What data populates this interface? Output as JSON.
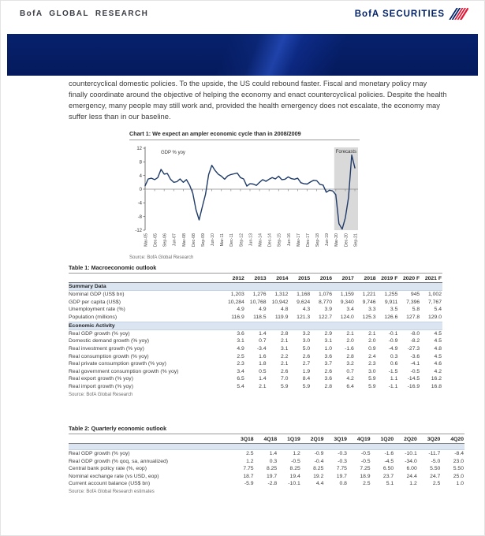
{
  "header": {
    "left_brand": "BofA GLOBAL RESEARCH",
    "right_brand": "BofA SECURITIES"
  },
  "paragraph": "countercyclical domestic policies. To the upside, the US could rebound faster. Fiscal and monetary policy may finally coordinate around the objective of helping the economy and enact countercyclical policies. Despite the health emergency, many people may still work and, provided the health emergency does not escalate, the economy may suffer less than in our baseline.",
  "chart": {
    "title": "Chart 1: We expect an ampler economic cycle than in 2008/2009",
    "source": "Source: BofA Global Research"
  },
  "chart_data": {
    "type": "line",
    "title": "We expect an ampler economic cycle than in 2008/2009",
    "series_label": "GDP % yoy",
    "forecast_label": "Forecasts",
    "ylim": [
      -12,
      12
    ],
    "yticks": [
      12,
      8,
      4,
      0,
      -4,
      -8,
      -12
    ],
    "x_tick_every": 3,
    "x_tick_labels": [
      "Mar-05",
      "Dec-05",
      "Sep-06",
      "Jun-07",
      "Mar-08",
      "Dec-08",
      "Sep-09",
      "Jun-10",
      "Mar-11",
      "Dec-11",
      "Sep-12",
      "Jun-13",
      "Mar-14",
      "Dec-14",
      "Sep-15",
      "Jun-16",
      "Mar-17",
      "Dec-17",
      "Sep-18",
      "Jun-19",
      "Mar-20",
      "Dec-20",
      "Sep-21"
    ],
    "values": [
      1.0,
      3.0,
      3.2,
      2.8,
      3.4,
      5.8,
      4.4,
      4.6,
      2.9,
      2.0,
      2.2,
      3.0,
      2.0,
      2.8,
      1.2,
      -1.2,
      -6.0,
      -9.0,
      -5.2,
      -1.5,
      4.3,
      7.0,
      5.5,
      4.4,
      3.8,
      2.9,
      3.9,
      4.3,
      4.5,
      4.7,
      3.4,
      3.0,
      0.9,
      1.6,
      1.5,
      1.1,
      2.0,
      2.8,
      2.3,
      2.9,
      3.4,
      3.0,
      3.8,
      2.8,
      2.9,
      3.6,
      3.1,
      2.9,
      3.2,
      1.9,
      1.6,
      1.5,
      2.1,
      2.6,
      2.5,
      1.4,
      1.2,
      -0.9,
      -0.3,
      -0.5,
      -1.6,
      -10.1,
      -11.7,
      -8.4,
      -2.5,
      10.0,
      6.2
    ],
    "forecast_start_index": 60,
    "legend_position": "none",
    "grid": false
  },
  "table1": {
    "title": "Table 1: Macroeconomic outlook",
    "columns": [
      "2012",
      "2013",
      "2014",
      "2015",
      "2016",
      "2017",
      "2018",
      "2019 F",
      "2020 F",
      "2021 F"
    ],
    "sections": [
      {
        "name": "Summary Data",
        "rows": [
          {
            "label": "Nominal GDP (US$ bn)",
            "values": [
              "1,203",
              "1,276",
              "1,312",
              "1,168",
              "1,076",
              "1,159",
              "1,221",
              "1,255",
              "945",
              "1,002"
            ]
          },
          {
            "label": "GDP per capita (US$)",
            "values": [
              "10,284",
              "10,768",
              "10,942",
              "9,624",
              "8,770",
              "9,340",
              "9,746",
              "9,911",
              "7,396",
              "7,767"
            ]
          },
          {
            "label": "Unemployment rate (%)",
            "values": [
              "4.9",
              "4.9",
              "4.8",
              "4.3",
              "3.9",
              "3.4",
              "3.3",
              "3.5",
              "5.8",
              "5.4"
            ]
          },
          {
            "label": "Population (millions)",
            "values": [
              "116.9",
              "118.5",
              "119.9",
              "121.3",
              "122.7",
              "124.0",
              "125.3",
              "126.6",
              "127.8",
              "129.0"
            ]
          }
        ]
      },
      {
        "name": "Economic Activity",
        "rows": [
          {
            "label": "Real GDP growth (% yoy)",
            "values": [
              "3.6",
              "1.4",
              "2.8",
              "3.2",
              "2.9",
              "2.1",
              "2.1",
              "-0.1",
              "-8.0",
              "4.5"
            ]
          },
          {
            "label": "Domestic demand growth (% yoy)",
            "values": [
              "3.1",
              "0.7",
              "2.1",
              "3.0",
              "3.1",
              "2.0",
              "2.0",
              "-0.9",
              "-8.2",
              "4.5"
            ]
          },
          {
            "label": "Real investment growth (% yoy)",
            "values": [
              "4.9",
              "-3.4",
              "3.1",
              "5.0",
              "1.0",
              "-1.6",
              "0.9",
              "-4.9",
              "-27.3",
              "4.8"
            ]
          },
          {
            "label": "Real consumption growth (% yoy)",
            "values": [
              "2.5",
              "1.6",
              "2.2",
              "2.6",
              "3.6",
              "2.8",
              "2.4",
              "0.3",
              "-3.6",
              "4.5"
            ]
          },
          {
            "label": "Real private consumption growth (% yoy)",
            "values": [
              "2.3",
              "1.8",
              "2.1",
              "2.7",
              "3.7",
              "3.2",
              "2.3",
              "0.6",
              "-4.1",
              "4.6"
            ]
          },
          {
            "label": "Real government consumption growth (% yoy)",
            "values": [
              "3.4",
              "0.5",
              "2.6",
              "1.9",
              "2.6",
              "0.7",
              "3.0",
              "-1.5",
              "-0.5",
              "4.2"
            ]
          },
          {
            "label": "Real export growth (% yoy)",
            "values": [
              "6.5",
              "1.4",
              "7.0",
              "8.4",
              "3.6",
              "4.2",
              "5.9",
              "1.1",
              "-14.5",
              "16.2"
            ]
          },
          {
            "label": "Real import growth (% yoy)",
            "values": [
              "5.4",
              "2.1",
              "5.9",
              "5.9",
              "2.8",
              "6.4",
              "5.9",
              "-1.1",
              "-16.9",
              "16.8"
            ]
          }
        ]
      }
    ],
    "source": "Source: BofA Global Research"
  },
  "table2": {
    "title": "Table 2: Quarterly economic outlook",
    "columns": [
      "3Q18",
      "4Q18",
      "1Q19",
      "2Q19",
      "3Q19",
      "4Q19",
      "1Q20",
      "2Q20",
      "3Q20",
      "4Q20"
    ],
    "rows": [
      {
        "label": "Real GDP growth (% yoy)",
        "values": [
          "2.5",
          "1.4",
          "1.2",
          "-0.9",
          "-0.3",
          "-0.5",
          "-1.6",
          "-10.1",
          "-11.7",
          "-8.4"
        ]
      },
      {
        "label": "Real GDP growth (% qoq, sa, annualized)",
        "values": [
          "1.2",
          "0.3",
          "-0.5",
          "-0.4",
          "-0.3",
          "-0.5",
          "-4.5",
          "-34.0",
          "-5.0",
          "23.0"
        ]
      },
      {
        "label": "Central bank policy rate (%, eop)",
        "values": [
          "7.75",
          "8.25",
          "8.25",
          "8.25",
          "7.75",
          "7.25",
          "6.50",
          "6.00",
          "5.50",
          "5.50"
        ]
      },
      {
        "label": "Nominal exchange rate (vs USD, eop)",
        "values": [
          "18.7",
          "19.7",
          "19.4",
          "19.2",
          "19.7",
          "18.9",
          "23.7",
          "24.4",
          "24.7",
          "25.0"
        ]
      },
      {
        "label": "Current account balance (US$ bn)",
        "values": [
          "-5.9",
          "-2.8",
          "-10.1",
          "4.4",
          "0.8",
          "2.5",
          "5.1",
          "1.2",
          "2.5",
          "1.0"
        ]
      }
    ],
    "source": "Source: BofA Global Research estimates"
  },
  "colors": {
    "brand_navy": "#012169",
    "brand_red": "#e31837",
    "banner_navy": "#051a5d",
    "line": "#1f3a68",
    "forecast_band": "#d9d9d9",
    "section_bg": "#dbe5f1",
    "axis": "#8a8a8a"
  }
}
